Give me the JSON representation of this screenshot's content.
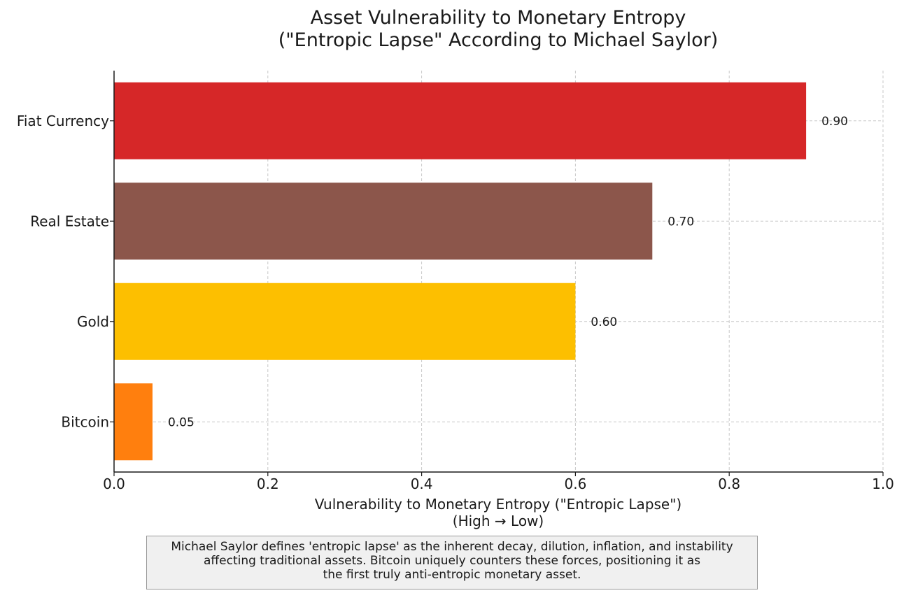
{
  "chart_data": {
    "type": "bar",
    "orientation": "horizontal",
    "title": [
      "Asset Vulnerability to Monetary Entropy",
      "(\"Entropic Lapse\" According to Michael Saylor)"
    ],
    "xlabel": [
      "Vulnerability to Monetary Entropy (\"Entropic Lapse\")",
      "(High → Low)"
    ],
    "ylabel": "",
    "xlim": [
      0.0,
      1.0
    ],
    "xticks": [
      "0.0",
      "0.2",
      "0.4",
      "0.6",
      "0.8",
      "1.0"
    ],
    "grid": true,
    "categories": [
      "Fiat Currency",
      "Real Estate",
      "Gold",
      "Bitcoin"
    ],
    "values": [
      0.9,
      0.7,
      0.6,
      0.05
    ],
    "value_labels": [
      "0.90",
      "0.70",
      "0.60",
      "0.05"
    ],
    "colors": [
      "#d62728",
      "#8c564b",
      "#fdbf00",
      "#ff7f0e"
    ],
    "annotation": [
      "Michael Saylor defines 'entropic lapse' as the inherent decay, dilution, inflation, and instability",
      "affecting traditional assets. Bitcoin uniquely counters these forces, positioning it as",
      "the first truly anti-entropic monetary asset."
    ]
  }
}
